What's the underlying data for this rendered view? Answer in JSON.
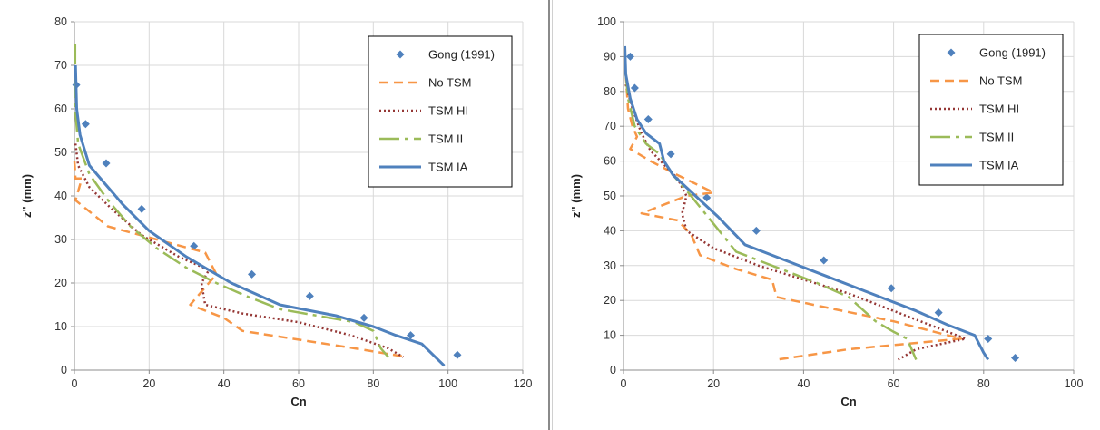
{
  "chart_data": [
    {
      "type": "line",
      "xlabel": "Cn",
      "ylabel": "z\" (mm)",
      "xlim": [
        0,
        120
      ],
      "ylim": [
        0,
        80
      ],
      "xticks": [
        0,
        20,
        40,
        60,
        80,
        100,
        120
      ],
      "yticks": [
        0,
        10,
        20,
        30,
        40,
        50,
        60,
        70,
        80
      ],
      "grid": true,
      "legend_position": "top-right",
      "series": [
        {
          "name": "Gong (1991)",
          "style": "markers",
          "color": "#4f81bd",
          "points": [
            [
              0.5,
              65.5
            ],
            [
              3,
              56.5
            ],
            [
              8.5,
              47.5
            ],
            [
              18,
              37
            ],
            [
              32,
              28.5
            ],
            [
              47.5,
              22
            ],
            [
              63,
              17
            ],
            [
              77.5,
              12
            ],
            [
              90,
              8
            ],
            [
              102.5,
              3.5
            ]
          ]
        },
        {
          "name": "No TSM",
          "style": "dash",
          "color": "#f79646",
          "points": [
            [
              0,
              48
            ],
            [
              0.3,
              44
            ],
            [
              2,
              44
            ],
            [
              0.3,
              39
            ],
            [
              9,
              33
            ],
            [
              22,
              30
            ],
            [
              35,
              27
            ],
            [
              38,
              22
            ],
            [
              31,
              15
            ],
            [
              40,
              12
            ],
            [
              45,
              9
            ],
            [
              60,
              7
            ],
            [
              75,
              5
            ],
            [
              89,
              3
            ]
          ]
        },
        {
          "name": "TSM HI",
          "style": "dot",
          "color": "#953735",
          "points": [
            [
              0.3,
              52
            ],
            [
              1,
              47
            ],
            [
              4,
              42
            ],
            [
              10,
              37
            ],
            [
              18,
              31
            ],
            [
              28,
              26
            ],
            [
              36,
              23
            ],
            [
              34,
              20
            ],
            [
              35,
              15
            ],
            [
              45,
              13
            ],
            [
              60,
              11
            ],
            [
              74,
              8
            ],
            [
              84,
              5
            ],
            [
              88,
              3
            ]
          ]
        },
        {
          "name": "TSM II",
          "style": "longdash",
          "color": "#9bbb59",
          "points": [
            [
              0.2,
              75
            ],
            [
              0.2,
              60
            ],
            [
              1,
              52
            ],
            [
              4,
              45
            ],
            [
              9,
              39
            ],
            [
              15,
              33
            ],
            [
              22,
              28
            ],
            [
              30,
              23.5
            ],
            [
              38,
              20
            ],
            [
              46,
              17
            ],
            [
              55,
              14
            ],
            [
              65,
              12.5
            ],
            [
              75,
              11
            ],
            [
              80,
              9
            ],
            [
              82,
              5
            ],
            [
              84,
              3
            ]
          ]
        },
        {
          "name": "TSM IA",
          "style": "solid",
          "color": "#4f81bd",
          "points": [
            [
              0.3,
              70
            ],
            [
              0.6,
              60
            ],
            [
              1.5,
              54
            ],
            [
              4,
              47
            ],
            [
              8,
              43
            ],
            [
              13,
              38
            ],
            [
              20,
              32
            ],
            [
              30,
              26
            ],
            [
              42,
              20
            ],
            [
              55,
              15
            ],
            [
              70,
              12.5
            ],
            [
              80,
              10
            ],
            [
              86,
              8
            ],
            [
              93,
              6
            ],
            [
              99,
              1
            ]
          ]
        }
      ]
    },
    {
      "type": "line",
      "xlabel": "Cn",
      "ylabel": "z\" (mm)",
      "xlim": [
        0,
        100
      ],
      "ylim": [
        0,
        100
      ],
      "xticks": [
        0,
        20,
        40,
        60,
        80,
        100
      ],
      "yticks": [
        0,
        10,
        20,
        30,
        40,
        50,
        60,
        70,
        80,
        90,
        100
      ],
      "grid": true,
      "legend_position": "top-right",
      "series": [
        {
          "name": "Gong (1991)",
          "style": "markers",
          "color": "#4f81bd",
          "points": [
            [
              1.5,
              90
            ],
            [
              2.5,
              81
            ],
            [
              5.5,
              72
            ],
            [
              10.5,
              62
            ],
            [
              18.5,
              49.5
            ],
            [
              29.5,
              40
            ],
            [
              44.5,
              31.5
            ],
            [
              59.5,
              23.5
            ],
            [
              70,
              16.5
            ],
            [
              81,
              9
            ],
            [
              87,
              3.5
            ]
          ]
        },
        {
          "name": "No TSM",
          "style": "dash",
          "color": "#f79646",
          "points": [
            [
              0.5,
              85
            ],
            [
              1,
              75
            ],
            [
              2,
              70
            ],
            [
              3,
              67
            ],
            [
              1.5,
              63.5
            ],
            [
              6,
              60
            ],
            [
              12,
              56
            ],
            [
              20,
              51
            ],
            [
              14,
              50
            ],
            [
              4,
              45
            ],
            [
              12,
              43
            ],
            [
              15,
              39
            ],
            [
              17,
              33
            ],
            [
              25,
              29
            ],
            [
              33,
              26
            ],
            [
              34,
              21
            ],
            [
              45,
              18
            ],
            [
              60,
              14
            ],
            [
              75,
              9
            ],
            [
              50,
              6
            ],
            [
              34,
              3
            ]
          ]
        },
        {
          "name": "TSM HI",
          "style": "dot",
          "color": "#953735",
          "points": [
            [
              0.5,
              82
            ],
            [
              2,
              75
            ],
            [
              4,
              68
            ],
            [
              6,
              63
            ],
            [
              9,
              59
            ],
            [
              12,
              55
            ],
            [
              14,
              50
            ],
            [
              13,
              45
            ],
            [
              14,
              40
            ],
            [
              20,
              35
            ],
            [
              30,
              30
            ],
            [
              40,
              26
            ],
            [
              50,
              22
            ],
            [
              60,
              17
            ],
            [
              68,
              13
            ],
            [
              76,
              9
            ],
            [
              65,
              6
            ],
            [
              61,
              3
            ]
          ]
        },
        {
          "name": "TSM II",
          "style": "longdash",
          "color": "#9bbb59",
          "points": [
            [
              0.5,
              85
            ],
            [
              1,
              78
            ],
            [
              2.5,
              70
            ],
            [
              5,
              65
            ],
            [
              8,
              62
            ],
            [
              11,
              56
            ],
            [
              15,
              50
            ],
            [
              20,
              42
            ],
            [
              25,
              34
            ],
            [
              35,
              29
            ],
            [
              43,
              25
            ],
            [
              50,
              21
            ],
            [
              56,
              14
            ],
            [
              60,
              11
            ],
            [
              63,
              9
            ],
            [
              65,
              3
            ]
          ]
        },
        {
          "name": "TSM IA",
          "style": "solid",
          "color": "#4f81bd",
          "points": [
            [
              0.3,
              93
            ],
            [
              0.5,
              85
            ],
            [
              1.5,
              78
            ],
            [
              3,
              72
            ],
            [
              5,
              68
            ],
            [
              8,
              65
            ],
            [
              9,
              60
            ],
            [
              11,
              56
            ],
            [
              16,
              50
            ],
            [
              21,
              44
            ],
            [
              27,
              36
            ],
            [
              35,
              32
            ],
            [
              45,
              27
            ],
            [
              55,
              22
            ],
            [
              65,
              17
            ],
            [
              72,
              13
            ],
            [
              78,
              10
            ],
            [
              80,
              5
            ],
            [
              81,
              3
            ]
          ]
        }
      ]
    }
  ]
}
